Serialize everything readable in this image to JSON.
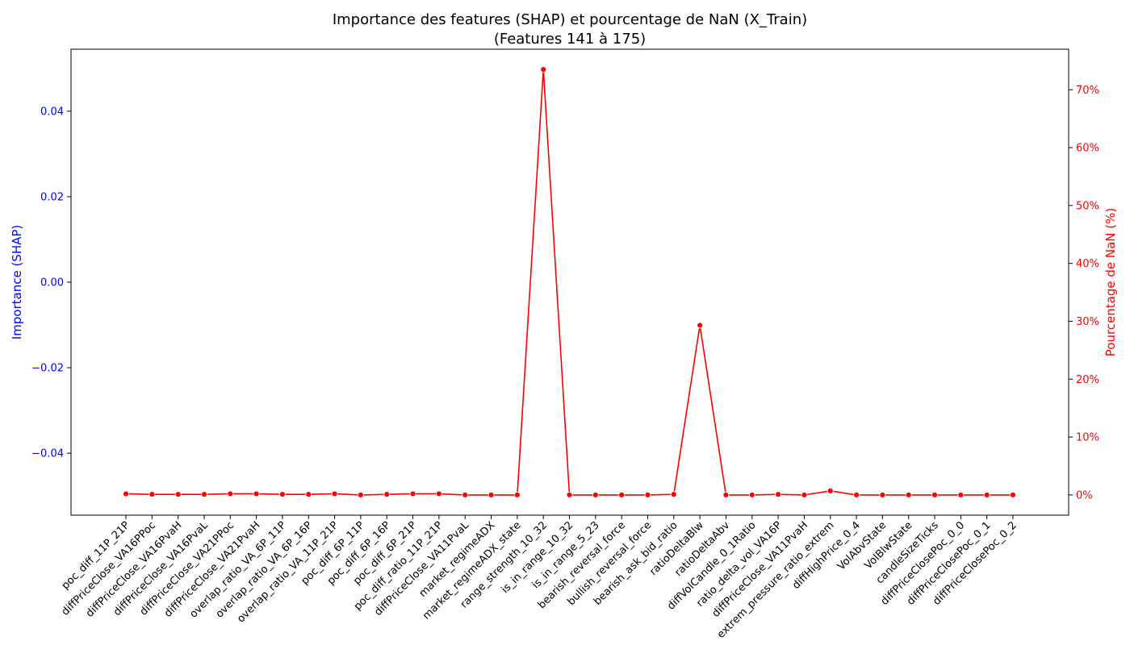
{
  "chart_data": {
    "type": "line",
    "title": "Importance des features (SHAP) et pourcentage de NaN (X_Train)",
    "subtitle": "(Features 141 à 175)",
    "ylabel_left": "Importance (SHAP)",
    "ylabel_right": "Pourcentage de NaN (%)",
    "left_axis": {
      "range": [
        -0.0545,
        0.0545
      ],
      "ticks": [
        "−0.04",
        "−0.02",
        "0.00",
        "0.02",
        "0.04"
      ],
      "tick_values": [
        -0.04,
        -0.02,
        0.0,
        0.02,
        0.04
      ],
      "color": "#0000ff"
    },
    "right_axis": {
      "range": [
        -3.5,
        77
      ],
      "ticks": [
        "0%",
        "10%",
        "20%",
        "30%",
        "40%",
        "50%",
        "60%",
        "70%"
      ],
      "tick_values": [
        0,
        10,
        20,
        30,
        40,
        50,
        60,
        70
      ],
      "color": "#ff0000"
    },
    "grid": false,
    "categories": [
      "poc_diff_11P_21P",
      "diffPriceClose_VA16PPoc",
      "diffPriceClose_VA16PvaH",
      "diffPriceClose_VA16PvaL",
      "diffPriceClose_VA21PPoc",
      "diffPriceClose_VA21PvaH",
      "overlap_ratio_VA_6P_11P",
      "overlap_ratio_VA_6P_16P",
      "overlap_ratio_VA_11P_21P",
      "poc_diff_6P_11P",
      "poc_diff_6P_16P",
      "poc_diff_6P_21P",
      "poc_diff_ratio_11P_21P",
      "diffPriceClose_VA11PvaL",
      "market_regimeADX",
      "market_regimeADX_state",
      "range_strength_10_32",
      "is_in_range_10_32",
      "is_in_range_5_23",
      "bearish_reversal_force",
      "bullish_reversal_force",
      "bearish_ask_bid_ratio",
      "ratioDeltaBlw",
      "ratioDeltaAbv",
      "diffVolCandle_0_1Ratio",
      "ratio_delta_vol_VA16P",
      "diffPriceClose_VA11PvaH",
      "extrem_pressure_ratio_extrem",
      "diffHighPrice_0_4",
      "VolAbvState",
      "VolBlwState",
      "candleSizeTicks",
      "diffPriceClosePoc_0_0",
      "diffPriceClosePoc_0_1",
      "diffPriceClosePoc_0_2"
    ],
    "series": [
      {
        "name": "Pourcentage de NaN (%)",
        "axis": "right",
        "color": "#ff0000",
        "values": [
          0.2,
          0.1,
          0.1,
          0.1,
          0.2,
          0.2,
          0.1,
          0.1,
          0.2,
          0.0,
          0.1,
          0.2,
          0.2,
          0.0,
          0.0,
          0.0,
          73.5,
          0.0,
          0.0,
          0.0,
          0.0,
          0.1,
          29.3,
          0.0,
          0.0,
          0.1,
          0.0,
          0.7,
          0.0,
          0.0,
          0.0,
          0.0,
          0.0,
          0.0,
          0.0
        ]
      }
    ]
  }
}
